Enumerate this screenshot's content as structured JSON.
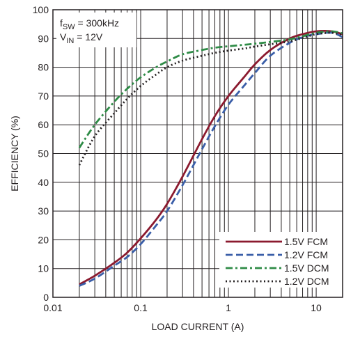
{
  "chart_data": {
    "type": "line",
    "xlabel": "LOAD CURRENT (A)",
    "ylabel": "EFFICIENCY (%)",
    "x_scale": "log",
    "xlim": [
      0.01,
      20
    ],
    "ylim": [
      0,
      100
    ],
    "x_ticks": [
      0.01,
      0.1,
      1,
      10
    ],
    "x_tick_labels": [
      "0.01",
      "0.1",
      "1",
      "10"
    ],
    "y_ticks": [
      0,
      10,
      20,
      30,
      40,
      50,
      60,
      70,
      80,
      90,
      100
    ],
    "y_tick_labels": [
      "0",
      "10",
      "20",
      "30",
      "40",
      "50",
      "60",
      "70",
      "80",
      "90",
      "100"
    ],
    "grid": true,
    "annotation": {
      "line1_main": "f",
      "line1_sub": "SW",
      "line1_rest": " = 300kHz",
      "line2_main": "V",
      "line2_sub": "IN",
      "line2_rest": " = 12V"
    },
    "legend_position": "bottom-right",
    "series": [
      {
        "name": "1.5V FCM",
        "color": "#8b1a2f",
        "dash": "solid",
        "x": [
          0.02,
          0.03,
          0.05,
          0.07,
          0.1,
          0.15,
          0.2,
          0.3,
          0.5,
          0.7,
          1,
          1.5,
          2,
          3,
          5,
          7,
          10,
          15,
          20
        ],
        "y": [
          4.5,
          7.5,
          12,
          15.5,
          20.5,
          27,
          32.5,
          42,
          55,
          63,
          70,
          76.5,
          81,
          86,
          90,
          91.5,
          92.5,
          92.5,
          91.5
        ]
      },
      {
        "name": "1.2V FCM",
        "color": "#3a5ea8",
        "dash": "dashed",
        "x": [
          0.02,
          0.03,
          0.05,
          0.07,
          0.1,
          0.15,
          0.2,
          0.3,
          0.5,
          0.7,
          1,
          1.5,
          2,
          3,
          5,
          7,
          10,
          15,
          20
        ],
        "y": [
          4,
          6.5,
          11,
          14,
          18.5,
          25,
          30,
          39,
          51.5,
          59.5,
          67,
          73.5,
          78,
          84,
          88.5,
          90.5,
          91.5,
          92,
          90.5
        ]
      },
      {
        "name": "1.5V DCM",
        "color": "#2e8b46",
        "dash": "dashdot",
        "x": [
          0.02,
          0.03,
          0.05,
          0.07,
          0.1,
          0.15,
          0.2,
          0.3,
          0.5,
          0.7,
          1,
          1.5,
          2,
          3,
          5,
          7,
          10,
          15,
          20
        ],
        "y": [
          52,
          60,
          68,
          72.5,
          76.5,
          80,
          82,
          84.5,
          86,
          86.8,
          87.3,
          87.8,
          88.2,
          88.8,
          89.7,
          90.8,
          92,
          92.5,
          91.8
        ]
      },
      {
        "name": "1.2V DCM",
        "color": "#231f20",
        "dash": "dotted",
        "x": [
          0.02,
          0.03,
          0.05,
          0.07,
          0.1,
          0.15,
          0.2,
          0.3,
          0.5,
          0.7,
          1,
          1.5,
          2,
          3,
          5,
          7,
          10,
          15,
          20
        ],
        "y": [
          46,
          56,
          64,
          69,
          73.5,
          77.5,
          80,
          82.3,
          84,
          85,
          85.8,
          86.5,
          87.2,
          88,
          89,
          90.2,
          91.5,
          92,
          91.2
        ]
      }
    ]
  }
}
